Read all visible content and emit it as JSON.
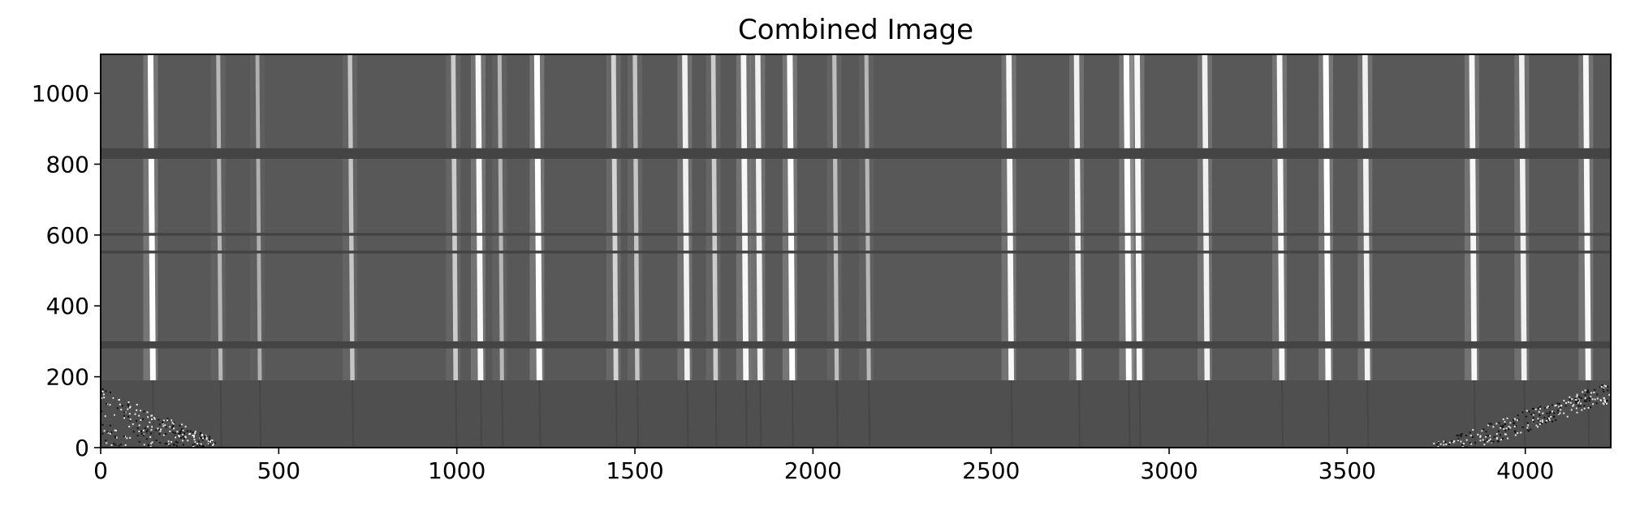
{
  "chart_data": {
    "type": "heatmap",
    "title": "Combined Image",
    "xlabel": "",
    "ylabel": "",
    "xlim": [
      0,
      4240
    ],
    "ylim": [
      0,
      1110
    ],
    "x_ticks": [
      0,
      500,
      1000,
      1500,
      2000,
      2500,
      3000,
      3500,
      4000
    ],
    "y_ticks": [
      0,
      200,
      400,
      600,
      800,
      1000
    ],
    "x_tick_labels": [
      "0",
      "500",
      "1000",
      "1500",
      "2000",
      "2500",
      "3000",
      "3500",
      "4000"
    ],
    "y_tick_labels": [
      "0",
      "200",
      "400",
      "600",
      "800",
      "1000"
    ],
    "colormap": "gray",
    "grid": false,
    "background_color": "#585858",
    "lower_region_color": "#4f4f4f",
    "lower_region_top_y": 190,
    "dark_bands": [
      {
        "y0": 815,
        "y1": 845
      },
      {
        "y0": 280,
        "y1": 300
      },
      {
        "y0": 548,
        "y1": 556
      },
      {
        "y0": 598,
        "y1": 606
      }
    ],
    "emission_lines": [
      {
        "x": 140,
        "intensity": 1.0
      },
      {
        "x": 330,
        "intensity": 0.5
      },
      {
        "x": 440,
        "intensity": 0.45
      },
      {
        "x": 700,
        "intensity": 0.6
      },
      {
        "x": 990,
        "intensity": 0.65
      },
      {
        "x": 1060,
        "intensity": 0.95
      },
      {
        "x": 1120,
        "intensity": 0.5
      },
      {
        "x": 1225,
        "intensity": 1.0
      },
      {
        "x": 1440,
        "intensity": 0.7
      },
      {
        "x": 1500,
        "intensity": 0.6
      },
      {
        "x": 1640,
        "intensity": 0.9
      },
      {
        "x": 1720,
        "intensity": 0.65
      },
      {
        "x": 1805,
        "intensity": 0.95
      },
      {
        "x": 1845,
        "intensity": 0.9
      },
      {
        "x": 1935,
        "intensity": 1.0
      },
      {
        "x": 2060,
        "intensity": 0.55
      },
      {
        "x": 2150,
        "intensity": 0.5
      },
      {
        "x": 2550,
        "intensity": 0.95
      },
      {
        "x": 2740,
        "intensity": 0.9
      },
      {
        "x": 2880,
        "intensity": 1.0
      },
      {
        "x": 2910,
        "intensity": 0.95
      },
      {
        "x": 3100,
        "intensity": 0.9
      },
      {
        "x": 3310,
        "intensity": 0.95
      },
      {
        "x": 3440,
        "intensity": 1.0
      },
      {
        "x": 3550,
        "intensity": 0.9
      },
      {
        "x": 3850,
        "intensity": 0.95
      },
      {
        "x": 3990,
        "intensity": 0.9
      },
      {
        "x": 4170,
        "intensity": 0.95
      }
    ]
  }
}
